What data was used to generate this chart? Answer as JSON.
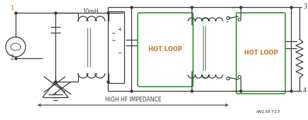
{
  "bg_color": "#ffffff",
  "line_color": "#3a3a3a",
  "green_color": "#4aaa4a",
  "orange_color": "#cc7722",
  "gray_color": "#888888",
  "label_1": "1",
  "label_2": "2",
  "label_3": "3",
  "label_4": "4",
  "label_10mH": "10mH",
  "label_hot1": "HOT LOOP",
  "label_hot2": "HOT LOOP",
  "label_hf": "HIGH HF IMPEDANCE",
  "label_fig": "AN138 F13"
}
